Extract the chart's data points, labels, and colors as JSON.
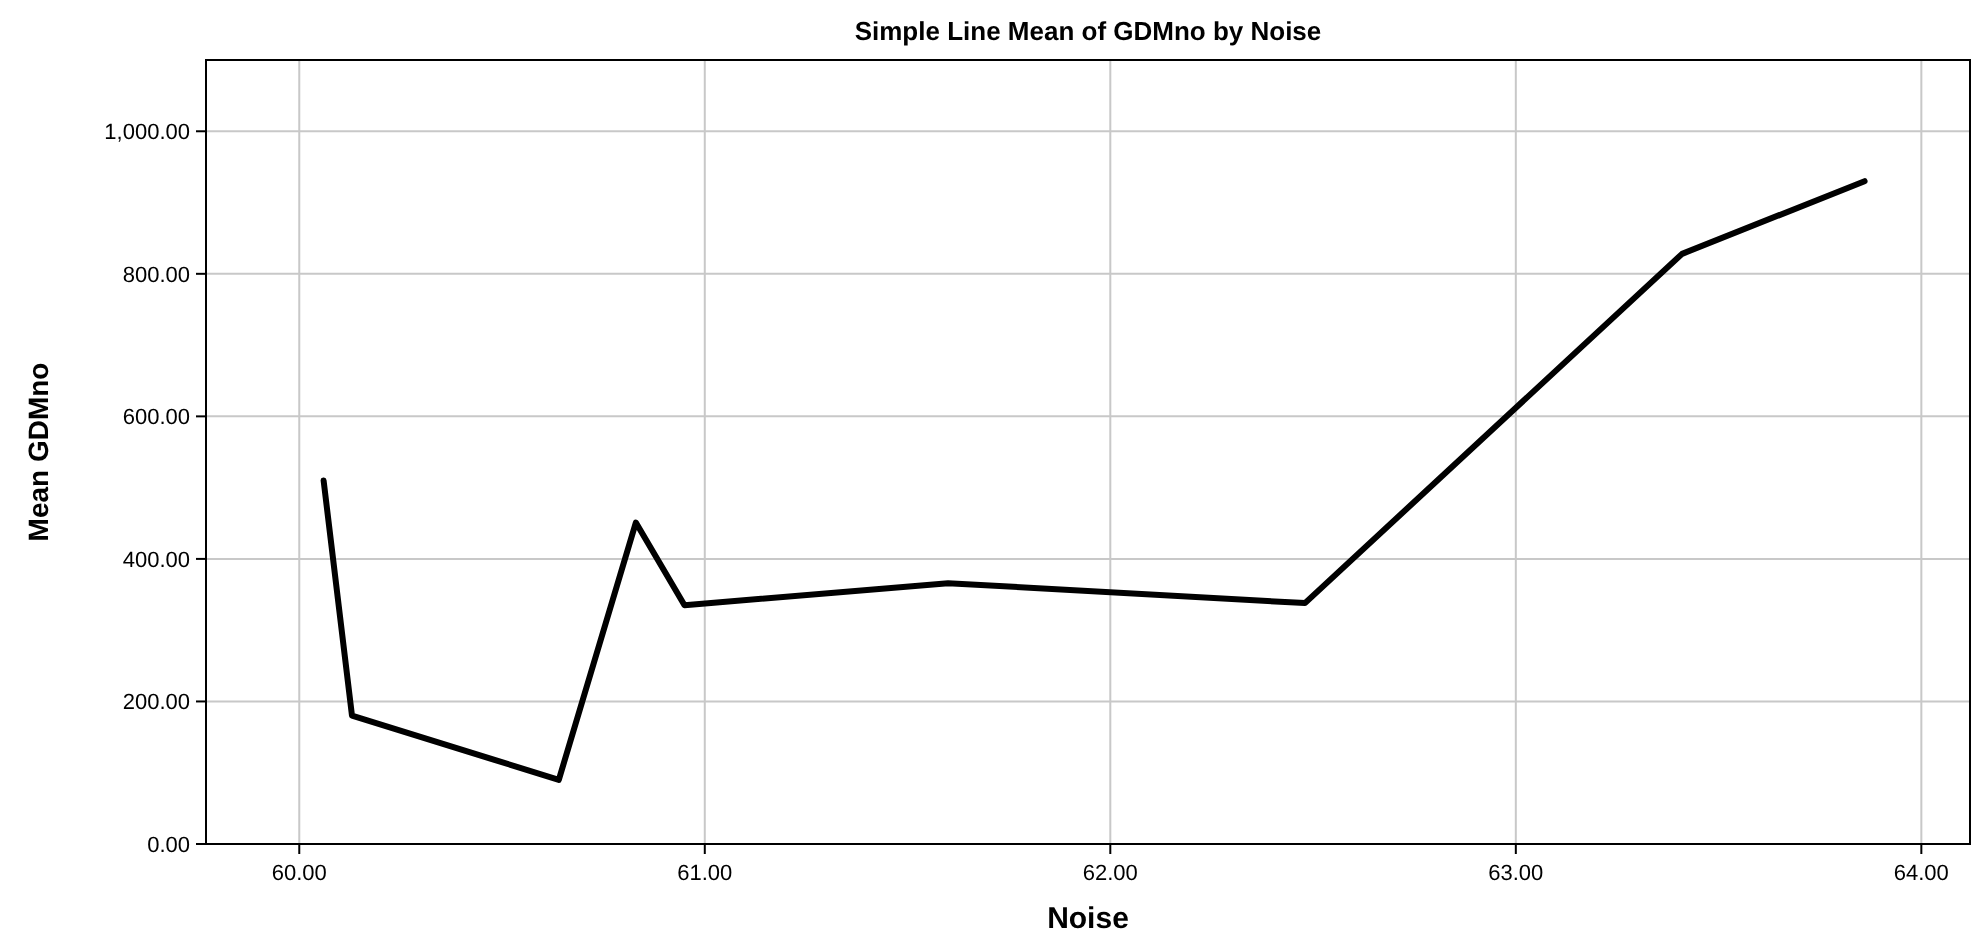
{
  "chart_data": {
    "type": "line",
    "title": "Simple Line Mean of GDMno by Noise",
    "xlabel": "Noise",
    "ylabel": "Mean GDMno",
    "x": [
      60.06,
      60.13,
      60.64,
      60.83,
      60.95,
      61.6,
      62.48,
      63.41,
      63.86
    ],
    "series": [
      {
        "color": "#000000",
        "values": [
          510,
          180,
          90,
          451,
          335,
          366,
          338,
          828,
          930
        ]
      }
    ],
    "xlim": [
      59.77,
      64.12
    ],
    "ylim": [
      0,
      1100
    ],
    "xticks": [
      {
        "value": 60,
        "label": "60.00"
      },
      {
        "value": 61,
        "label": "61.00"
      },
      {
        "value": 62,
        "label": "62.00"
      },
      {
        "value": 63,
        "label": "63.00"
      },
      {
        "value": 64,
        "label": "64.00"
      }
    ],
    "yticks": [
      {
        "value": 0,
        "label": "0.00"
      },
      {
        "value": 200,
        "label": "200.00"
      },
      {
        "value": 400,
        "label": "400.00"
      },
      {
        "value": 600,
        "label": "600.00"
      },
      {
        "value": 800,
        "label": "800.00"
      },
      {
        "value": 1000,
        "label": "1,000.00"
      }
    ],
    "grid": true,
    "marker": "none",
    "line_style": "solid"
  }
}
